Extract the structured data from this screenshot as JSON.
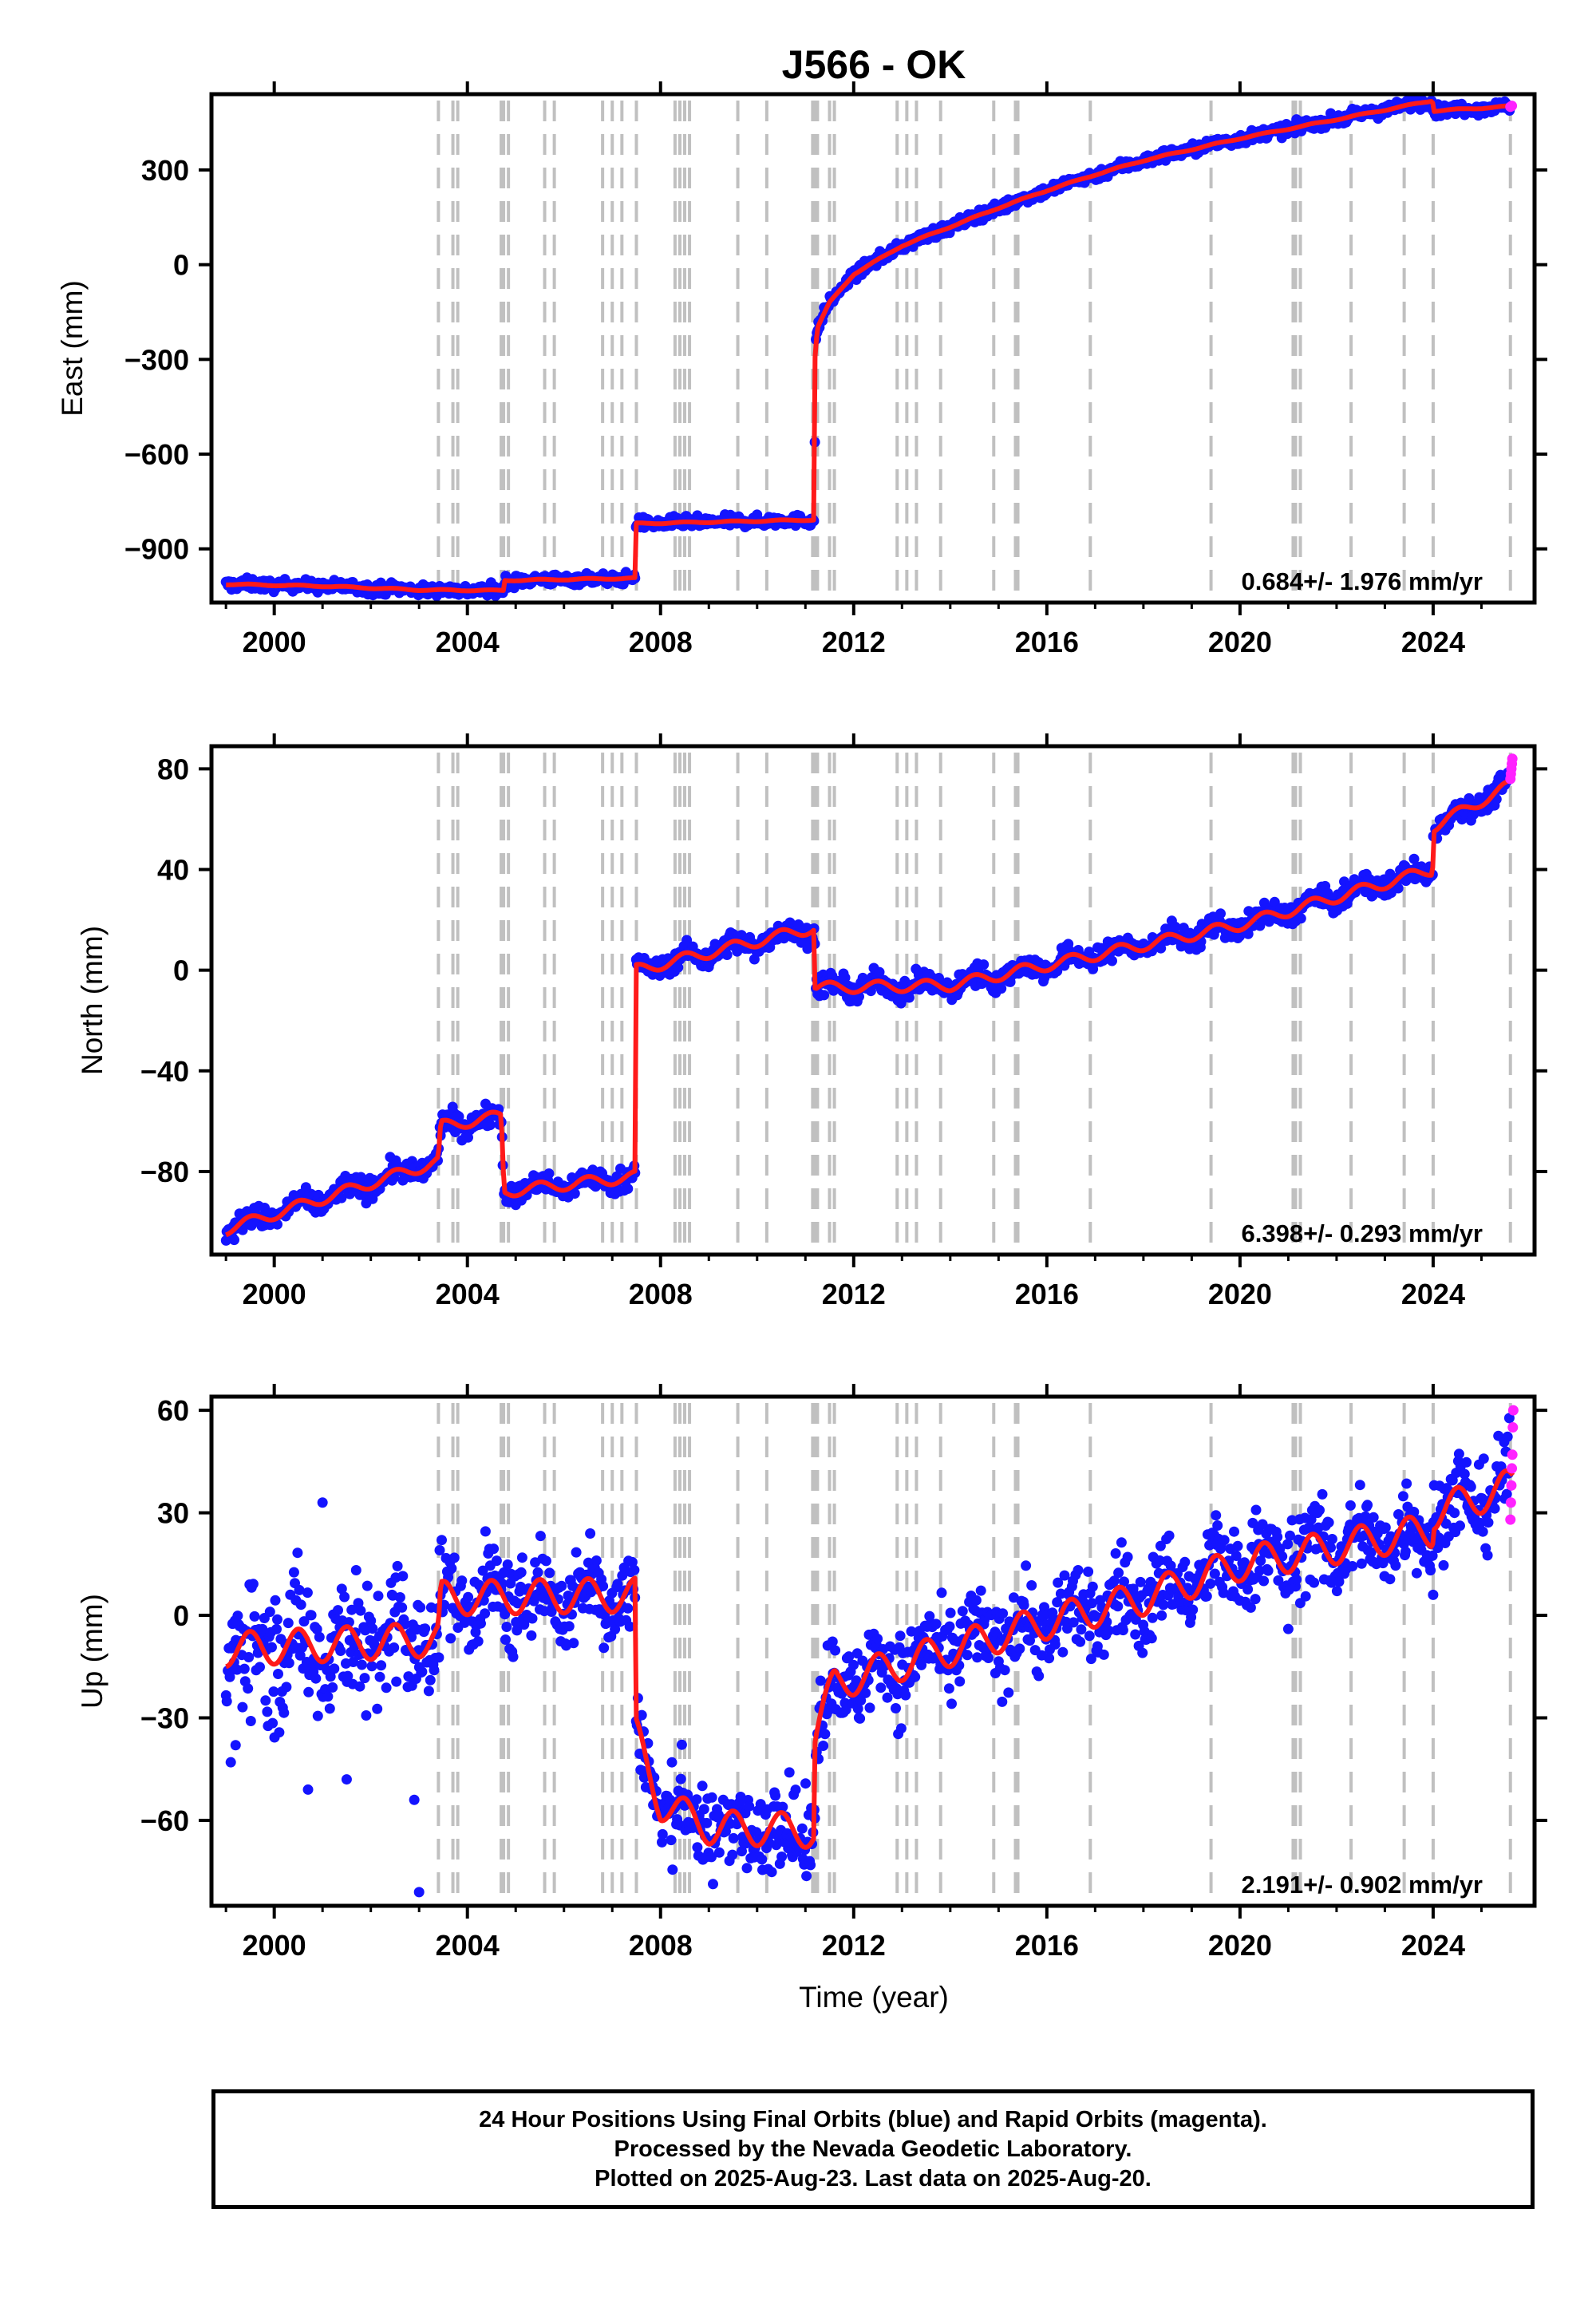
{
  "figure": {
    "title": "J566 - OK",
    "xlabel": "Time (year)",
    "caption": [
      "24 Hour Positions Using Final Orbits (blue) and Rapid Orbits (magenta).",
      "Processed by the Nevada Geodetic Laboratory.",
      "Plotted on 2025-Aug-23. Last data on 2025-Aug-20."
    ]
  },
  "colors": {
    "final_orbits": "#1414ff",
    "rapid_orbits": "#ff22ff",
    "model": "#ff1a1a",
    "event_lines": "#c0c0c0",
    "axes": "#000000"
  },
  "chart_data": [
    {
      "type": "scatter",
      "ylabel": "East (mm)",
      "xlim": [
        1998.7,
        2026.1
      ],
      "ylim": [
        -1070,
        540
      ],
      "xticks": [
        "2000",
        "2004",
        "2008",
        "2012",
        "2016",
        "2020",
        "2024"
      ],
      "yticks": [
        "300",
        "0",
        "−300",
        "−600",
        "−900"
      ],
      "ytick_values": [
        300,
        0,
        -300,
        -600,
        -900
      ],
      "rate_label": "0.684+/- 1.976 mm/yr",
      "legend": "none",
      "grid": false,
      "event_lines_decimal_year": [
        2003.4,
        2003.7,
        2003.8,
        2004.7,
        2004.75,
        2004.85,
        2005.6,
        2005.8,
        2006.8,
        2007.0,
        2007.2,
        2007.5,
        2008.3,
        2008.4,
        2008.5,
        2008.6,
        2009.6,
        2010.2,
        2011.15,
        2011.2,
        2011.25,
        2011.5,
        2011.6,
        2012.9,
        2013.1,
        2013.3,
        2013.8,
        2014.9,
        2015.35,
        2015.4,
        2016.9,
        2019.4,
        2021.1,
        2021.15,
        2021.25,
        2022.3,
        2023.4,
        2024.0,
        2025.6
      ],
      "model_breakpoints": [
        [
          1999.0,
          -1012
        ],
        [
          2001.0,
          -1018
        ],
        [
          2003.0,
          -1030
        ],
        [
          2004.75,
          -1032
        ],
        [
          2004.76,
          -1000
        ],
        [
          2007.48,
          -993
        ],
        [
          2007.49,
          -820
        ],
        [
          2011.19,
          -808
        ],
        [
          2011.2,
          -280
        ],
        [
          2011.25,
          -200
        ],
        [
          2011.5,
          -120
        ],
        [
          2012.0,
          -30
        ],
        [
          2013.0,
          60
        ],
        [
          2014.0,
          120
        ],
        [
          2015.0,
          180
        ],
        [
          2016.0,
          235
        ],
        [
          2017.0,
          285
        ],
        [
          2018.0,
          330
        ],
        [
          2019.0,
          365
        ],
        [
          2020.0,
          400
        ],
        [
          2021.0,
          430
        ],
        [
          2022.0,
          460
        ],
        [
          2023.0,
          490
        ],
        [
          2023.99,
          520
        ],
        [
          2024.0,
          487
        ],
        [
          2025.65,
          502
        ]
      ],
      "scatter_spread_mm": 9,
      "rapid_orbit_points": [
        [
          2025.6,
          500
        ],
        [
          2025.63,
          503
        ]
      ]
    },
    {
      "type": "scatter",
      "ylabel": "North (mm)",
      "xlim": [
        1998.7,
        2026.1
      ],
      "ylim": [
        -113,
        89
      ],
      "xticks": [
        "2000",
        "2004",
        "2008",
        "2012",
        "2016",
        "2020",
        "2024"
      ],
      "yticks": [
        "80",
        "40",
        "0",
        "−40",
        "−80"
      ],
      "ytick_values": [
        80,
        40,
        0,
        -40,
        -80
      ],
      "rate_label": "6.398+/- 0.293 mm/yr",
      "legend": "none",
      "grid": false,
      "event_lines_decimal_year": [
        2003.4,
        2003.7,
        2003.8,
        2004.7,
        2004.75,
        2004.85,
        2005.6,
        2005.8,
        2006.8,
        2007.0,
        2007.2,
        2007.5,
        2008.3,
        2008.4,
        2008.5,
        2008.6,
        2009.6,
        2010.2,
        2011.15,
        2011.2,
        2011.25,
        2011.5,
        2011.6,
        2012.9,
        2013.1,
        2013.3,
        2013.8,
        2014.9,
        2015.35,
        2015.4,
        2016.9,
        2019.4,
        2021.1,
        2021.15,
        2021.25,
        2022.3,
        2023.4,
        2024.0,
        2025.6
      ],
      "model_breakpoints": [
        [
          1999.0,
          -103
        ],
        [
          2003.4,
          -76
        ],
        [
          2003.45,
          -62
        ],
        [
          2004.7,
          -58
        ],
        [
          2004.76,
          -88
        ],
        [
          2007.48,
          -82
        ],
        [
          2007.49,
          0
        ],
        [
          2011.19,
          17
        ],
        [
          2011.2,
          -7
        ],
        [
          2014.0,
          -6
        ],
        [
          2016.0,
          2
        ],
        [
          2020.0,
          18
        ],
        [
          2023.99,
          40
        ],
        [
          2024.0,
          57
        ],
        [
          2025.65,
          74
        ]
      ],
      "scatter_spread_mm": 2.2,
      "rapid_orbit_points": [
        [
          2025.6,
          76
        ],
        [
          2025.61,
          78
        ],
        [
          2025.62,
          80
        ],
        [
          2025.63,
          82
        ],
        [
          2025.64,
          84
        ]
      ]
    },
    {
      "type": "scatter",
      "ylabel": "Up (mm)",
      "xlim": [
        1998.7,
        2026.1
      ],
      "ylim": [
        -85,
        64
      ],
      "xticks": [
        "2000",
        "2004",
        "2008",
        "2012",
        "2016",
        "2020",
        "2024"
      ],
      "yticks": [
        "60",
        "30",
        "0",
        "−30",
        "−60"
      ],
      "ytick_values": [
        60,
        30,
        0,
        -30,
        -60
      ],
      "rate_label": "2.191+/- 0.902 mm/yr",
      "legend": "none",
      "grid": false,
      "event_lines_decimal_year": [
        2003.4,
        2003.7,
        2003.8,
        2004.7,
        2004.75,
        2004.85,
        2005.6,
        2005.8,
        2006.8,
        2007.0,
        2007.2,
        2007.5,
        2008.3,
        2008.4,
        2008.5,
        2008.6,
        2009.6,
        2010.2,
        2011.15,
        2011.2,
        2011.25,
        2011.5,
        2011.6,
        2012.9,
        2013.1,
        2013.3,
        2013.8,
        2014.9,
        2015.35,
        2015.4,
        2016.9,
        2019.4,
        2021.1,
        2021.15,
        2021.25,
        2022.3,
        2023.4,
        2024.0,
        2025.6
      ],
      "model_breakpoints": [
        [
          1999.0,
          -10
        ],
        [
          2003.4,
          -7
        ],
        [
          2003.45,
          5
        ],
        [
          2007.48,
          6
        ],
        [
          2007.49,
          -35
        ],
        [
          2008.0,
          -55
        ],
        [
          2009.0,
          -62
        ],
        [
          2011.19,
          -63
        ],
        [
          2011.2,
          -35
        ],
        [
          2011.6,
          -20
        ],
        [
          2014.0,
          -10
        ],
        [
          2016.0,
          -2
        ],
        [
          2018.0,
          5
        ],
        [
          2020.0,
          15
        ],
        [
          2023.99,
          25
        ],
        [
          2024.0,
          30
        ],
        [
          2025.65,
          38
        ]
      ],
      "annual_amplitude_mm": 5,
      "scatter_spread_mm": 6.5,
      "outliers": [
        [
          1999.1,
          -43
        ],
        [
          1999.2,
          -38
        ],
        [
          2000.7,
          -51
        ],
        [
          2001.0,
          33
        ],
        [
          2002.9,
          -54
        ],
        [
          2003.0,
          -81
        ],
        [
          2001.5,
          -48
        ],
        [
          2021.0,
          -4
        ],
        [
          2024.0,
          6
        ]
      ],
      "rapid_orbit_points": [
        [
          2025.6,
          28
        ],
        [
          2025.61,
          33
        ],
        [
          2025.62,
          38
        ],
        [
          2025.63,
          43
        ],
        [
          2025.64,
          47
        ],
        [
          2025.65,
          55
        ],
        [
          2025.66,
          60
        ]
      ]
    }
  ]
}
